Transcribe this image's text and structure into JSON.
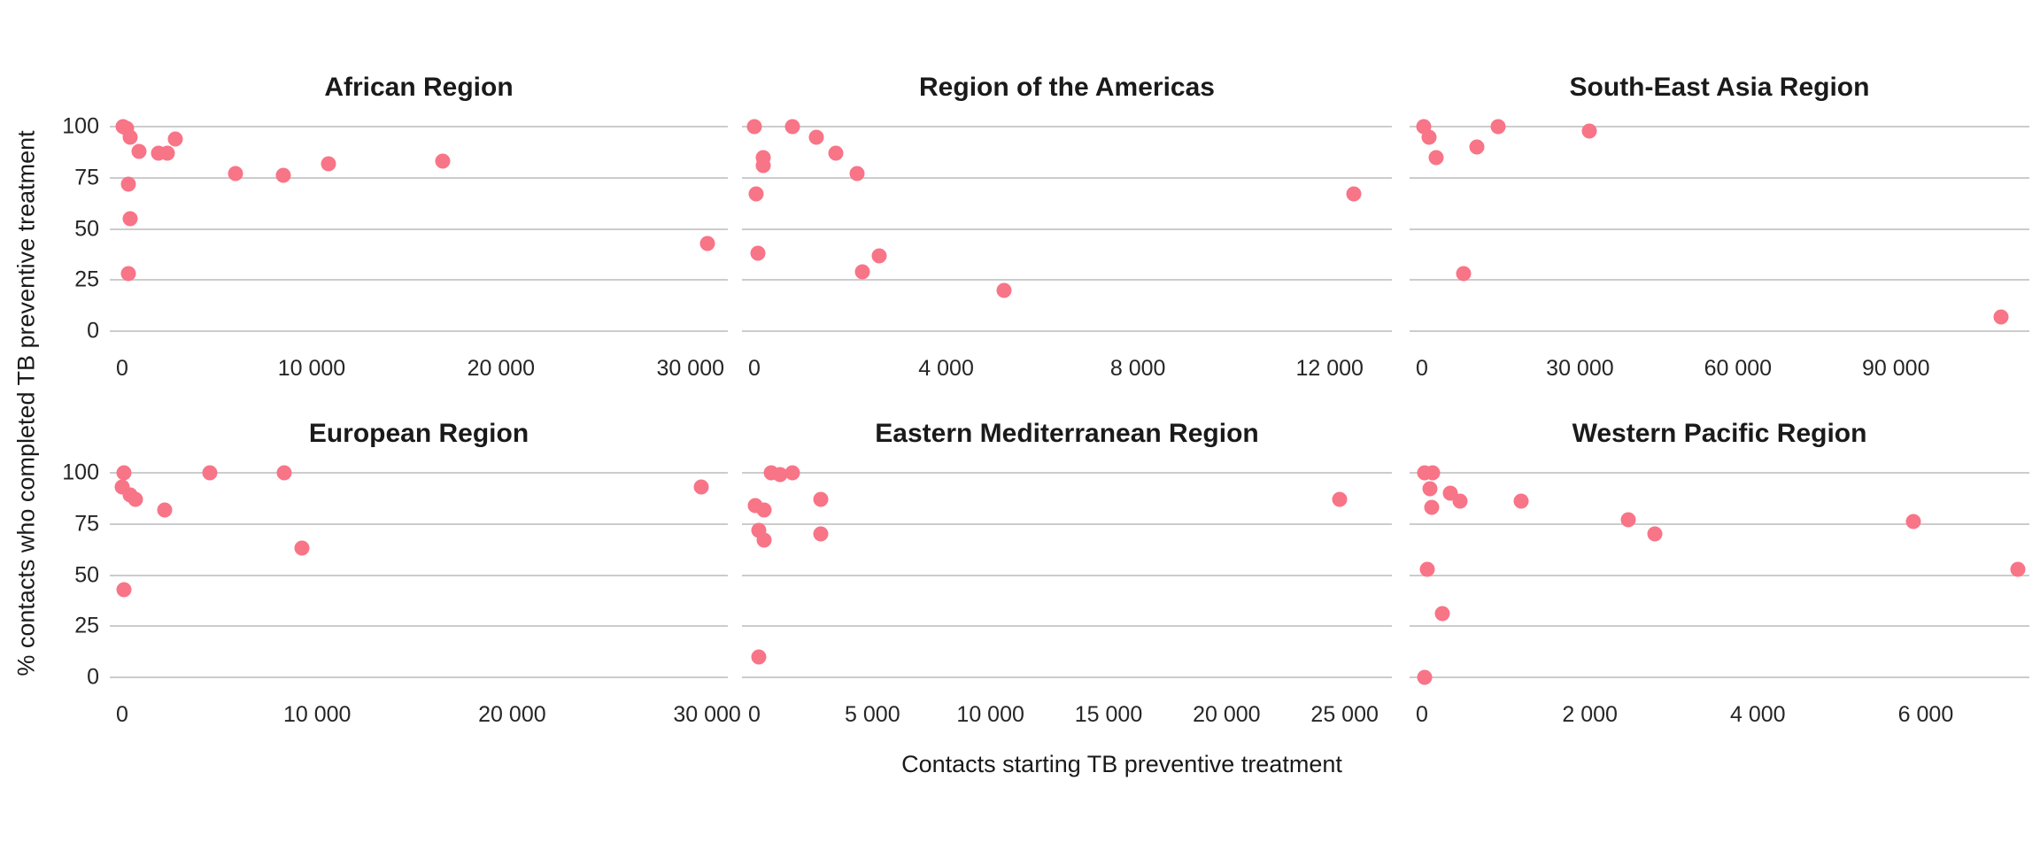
{
  "chart_data": {
    "type": "scatter",
    "xlabel": "Contacts starting TB preventive treatment",
    "ylabel": "% contacts who completed TB preventive treatment",
    "grid": "horizontal-major-only",
    "legend": "none",
    "point_color": "#f87487",
    "gridline_color": "#cccccc",
    "title_color": "#1a1a1a",
    "tick_color": "#262626",
    "y_axis": {
      "domain": [
        0,
        100
      ],
      "ticks": [
        100,
        75,
        50,
        25,
        0
      ],
      "tick_labels": [
        "100",
        "75",
        "50",
        "25",
        "0"
      ],
      "labels_shown_on": "left column only"
    },
    "panels": [
      {
        "title": "African Region",
        "row": 0,
        "col": 0,
        "x_max": 31600,
        "x_ticks": [
          0,
          10000,
          20000,
          30000
        ],
        "x_tick_labels": [
          "0",
          "10 000",
          "20 000",
          "30 000"
        ],
        "points": [
          [
            50,
            100
          ],
          [
            250,
            99
          ],
          [
            400,
            95
          ],
          [
            900,
            88
          ],
          [
            1900,
            87
          ],
          [
            2400,
            87
          ],
          [
            2800,
            94
          ],
          [
            350,
            72
          ],
          [
            400,
            55
          ],
          [
            350,
            28
          ],
          [
            6000,
            77
          ],
          [
            8500,
            76
          ],
          [
            10900,
            82
          ],
          [
            16900,
            83
          ],
          [
            30900,
            43
          ]
        ]
      },
      {
        "title": "Region of the Americas",
        "row": 0,
        "col": 1,
        "x_max": 13150,
        "x_ticks": [
          0,
          4000,
          8000,
          12000
        ],
        "x_tick_labels": [
          "0",
          "4 000",
          "8 000",
          "12 000"
        ],
        "points": [
          [
            0,
            100
          ],
          [
            800,
            100
          ],
          [
            1300,
            95
          ],
          [
            1700,
            87
          ],
          [
            2150,
            77
          ],
          [
            190,
            85
          ],
          [
            190,
            81
          ],
          [
            30,
            67
          ],
          [
            75,
            38
          ],
          [
            2600,
            37
          ],
          [
            2250,
            29
          ],
          [
            5200,
            20
          ],
          [
            12500,
            67
          ]
        ]
      },
      {
        "title": "South-East Asia Region",
        "row": 0,
        "col": 2,
        "x_max": 114000,
        "x_ticks": [
          0,
          30000,
          60000,
          90000
        ],
        "x_tick_labels": [
          "0",
          "30 000",
          "60 000",
          "90 000"
        ],
        "points": [
          [
            300,
            100
          ],
          [
            1400,
            95
          ],
          [
            2700,
            85
          ],
          [
            10500,
            90
          ],
          [
            14500,
            100
          ],
          [
            31800,
            98
          ],
          [
            7900,
            28
          ],
          [
            110000,
            7
          ]
        ]
      },
      {
        "title": "European Region",
        "row": 1,
        "col": 0,
        "x_max": 30700,
        "x_ticks": [
          0,
          10000,
          20000,
          30000
        ],
        "x_tick_labels": [
          "0",
          "10 000",
          "20 000",
          "30 000"
        ],
        "points": [
          [
            100,
            100
          ],
          [
            0,
            93
          ],
          [
            400,
            89
          ],
          [
            700,
            87
          ],
          [
            2200,
            82
          ],
          [
            4500,
            100
          ],
          [
            8300,
            100
          ],
          [
            9200,
            63
          ],
          [
            100,
            43
          ],
          [
            29700,
            93
          ]
        ]
      },
      {
        "title": "Eastern Mediterranean Region",
        "row": 1,
        "col": 1,
        "x_max": 26700,
        "x_ticks": [
          0,
          5000,
          10000,
          15000,
          20000,
          25000
        ],
        "x_tick_labels": [
          "0",
          "5 000",
          "10 000",
          "15 000",
          "20 000",
          "25 000"
        ],
        "points": [
          [
            700,
            100
          ],
          [
            1100,
            99
          ],
          [
            1600,
            100
          ],
          [
            2800,
            87
          ],
          [
            50,
            84
          ],
          [
            400,
            82
          ],
          [
            200,
            72
          ],
          [
            400,
            67
          ],
          [
            2800,
            70
          ],
          [
            200,
            10
          ],
          [
            24800,
            87
          ]
        ]
      },
      {
        "title": "Western Pacific Region",
        "row": 1,
        "col": 2,
        "x_max": 7150,
        "x_ticks": [
          0,
          2000,
          4000,
          6000
        ],
        "x_tick_labels": [
          "0",
          "2 000",
          "4 000",
          "6 000"
        ],
        "points": [
          [
            30,
            100
          ],
          [
            130,
            100
          ],
          [
            90,
            92
          ],
          [
            120,
            83
          ],
          [
            340,
            90
          ],
          [
            450,
            86
          ],
          [
            1180,
            86
          ],
          [
            2460,
            77
          ],
          [
            2770,
            70
          ],
          [
            5850,
            76
          ],
          [
            60,
            53
          ],
          [
            240,
            31
          ],
          [
            35,
            0
          ],
          [
            7100,
            53
          ]
        ]
      }
    ]
  }
}
